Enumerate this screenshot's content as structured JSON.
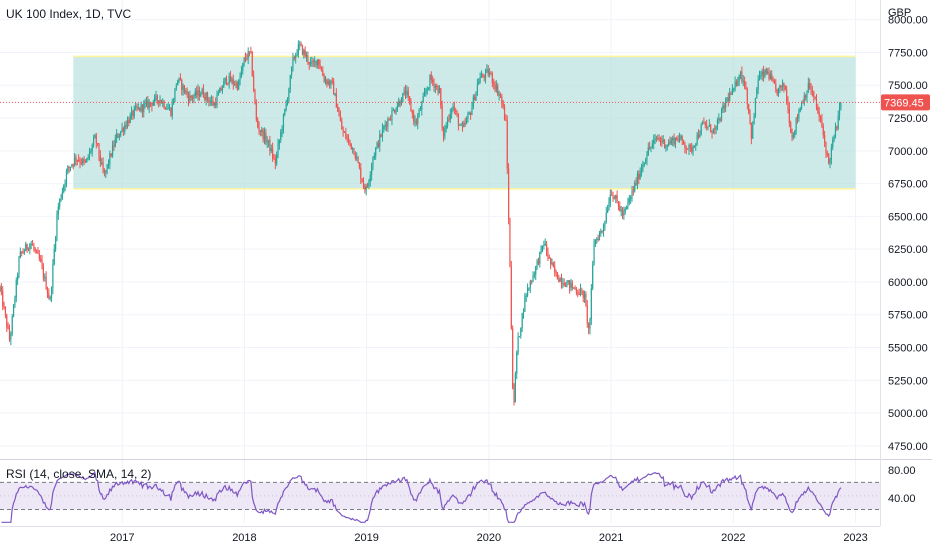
{
  "header": {
    "title": "UK 100 Index, 1D, TVC",
    "currency": "GBP"
  },
  "rsi": {
    "label": "RSI (14, close, SMA, 14, 2)",
    "upper_label": "80.00",
    "lower_label": "40.00",
    "line_color": "#7e57c2",
    "band_color": "#ede7f6"
  },
  "colors": {
    "up": "#26a69a",
    "down": "#ef5350",
    "zone_fill": "#b2dfdb",
    "zone_border": "#fff59d",
    "last_price_bg": "#ef5350",
    "grid": "#f0f3fa"
  },
  "chart_data": [
    {
      "type": "candlestick",
      "title": "UK 100 Index, 1D, TVC",
      "ylabel": "GBP",
      "ylim": [
        4650,
        8150
      ],
      "xlim": [
        2016.0,
        2023.2
      ],
      "x_ticks": [
        "2017",
        "2018",
        "2019",
        "2020",
        "2021",
        "2022",
        "2023"
      ],
      "y_ticks": [
        "4750.00",
        "5000.00",
        "5250.00",
        "5500.00",
        "5750.00",
        "6000.00",
        "6250.00",
        "6500.00",
        "6750.00",
        "7000.00",
        "7250.00",
        "7500.00",
        "7750.00",
        "8000.00"
      ],
      "last_price": 7369.45,
      "last_price_label": "7369.45",
      "zone": {
        "x_start": 2016.6,
        "x_end": 2023.0,
        "y_low": 6710,
        "y_high": 7720
      },
      "price_path": [
        [
          2016.0,
          5950
        ],
        [
          2016.08,
          5550
        ],
        [
          2016.16,
          6200
        ],
        [
          2016.25,
          6300
        ],
        [
          2016.33,
          6150
        ],
        [
          2016.41,
          5850
        ],
        [
          2016.47,
          6550
        ],
        [
          2016.55,
          6850
        ],
        [
          2016.62,
          6950
        ],
        [
          2016.7,
          6900
        ],
        [
          2016.78,
          7100
        ],
        [
          2016.85,
          6800
        ],
        [
          2016.95,
          7100
        ],
        [
          2017.1,
          7300
        ],
        [
          2017.2,
          7350
        ],
        [
          2017.3,
          7400
        ],
        [
          2017.4,
          7300
        ],
        [
          2017.45,
          7550
        ],
        [
          2017.55,
          7400
        ],
        [
          2017.65,
          7450
        ],
        [
          2017.75,
          7350
        ],
        [
          2017.85,
          7550
        ],
        [
          2017.95,
          7500
        ],
        [
          2018.0,
          7700
        ],
        [
          2018.05,
          7750
        ],
        [
          2018.1,
          7200
        ],
        [
          2018.2,
          7050
        ],
        [
          2018.25,
          6900
        ],
        [
          2018.35,
          7400
        ],
        [
          2018.4,
          7700
        ],
        [
          2018.45,
          7800
        ],
        [
          2018.55,
          7650
        ],
        [
          2018.6,
          7700
        ],
        [
          2018.65,
          7550
        ],
        [
          2018.72,
          7500
        ],
        [
          2018.8,
          7150
        ],
        [
          2018.9,
          7000
        ],
        [
          2018.97,
          6750
        ],
        [
          2019.0,
          6700
        ],
        [
          2019.05,
          6950
        ],
        [
          2019.15,
          7200
        ],
        [
          2019.25,
          7350
        ],
        [
          2019.32,
          7450
        ],
        [
          2019.4,
          7200
        ],
        [
          2019.45,
          7350
        ],
        [
          2019.52,
          7550
        ],
        [
          2019.6,
          7450
        ],
        [
          2019.62,
          7100
        ],
        [
          2019.7,
          7350
        ],
        [
          2019.78,
          7150
        ],
        [
          2019.85,
          7300
        ],
        [
          2019.92,
          7550
        ],
        [
          2020.0,
          7600
        ],
        [
          2020.05,
          7500
        ],
        [
          2020.1,
          7400
        ],
        [
          2020.14,
          7200
        ],
        [
          2020.17,
          6200
        ],
        [
          2020.2,
          5000
        ],
        [
          2020.23,
          5500
        ],
        [
          2020.3,
          5900
        ],
        [
          2020.38,
          6100
        ],
        [
          2020.45,
          6300
        ],
        [
          2020.5,
          6150
        ],
        [
          2020.55,
          6050
        ],
        [
          2020.62,
          6000
        ],
        [
          2020.7,
          5950
        ],
        [
          2020.78,
          5900
        ],
        [
          2020.82,
          5600
        ],
        [
          2020.86,
          6300
        ],
        [
          2020.93,
          6400
        ],
        [
          2021.0,
          6700
        ],
        [
          2021.1,
          6500
        ],
        [
          2021.2,
          6750
        ],
        [
          2021.3,
          7000
        ],
        [
          2021.38,
          7100
        ],
        [
          2021.45,
          7050
        ],
        [
          2021.55,
          7100
        ],
        [
          2021.65,
          7000
        ],
        [
          2021.75,
          7200
        ],
        [
          2021.85,
          7150
        ],
        [
          2021.95,
          7400
        ],
        [
          2022.0,
          7450
        ],
        [
          2022.05,
          7600
        ],
        [
          2022.1,
          7500
        ],
        [
          2022.15,
          7100
        ],
        [
          2022.2,
          7550
        ],
        [
          2022.28,
          7600
        ],
        [
          2022.35,
          7450
        ],
        [
          2022.42,
          7500
        ],
        [
          2022.48,
          7100
        ],
        [
          2022.55,
          7350
        ],
        [
          2022.62,
          7500
        ],
        [
          2022.66,
          7400
        ],
        [
          2022.72,
          7200
        ],
        [
          2022.78,
          6900
        ],
        [
          2022.81,
          7050
        ],
        [
          2022.86,
          7250
        ],
        [
          2022.88,
          7369.45
        ]
      ]
    },
    {
      "type": "line",
      "title": "RSI (14, close, SMA, 14, 2)",
      "ylim": [
        10,
        100
      ],
      "levels": [
        30,
        70
      ],
      "y_ticks": [
        "80.00",
        "40.00"
      ]
    }
  ]
}
